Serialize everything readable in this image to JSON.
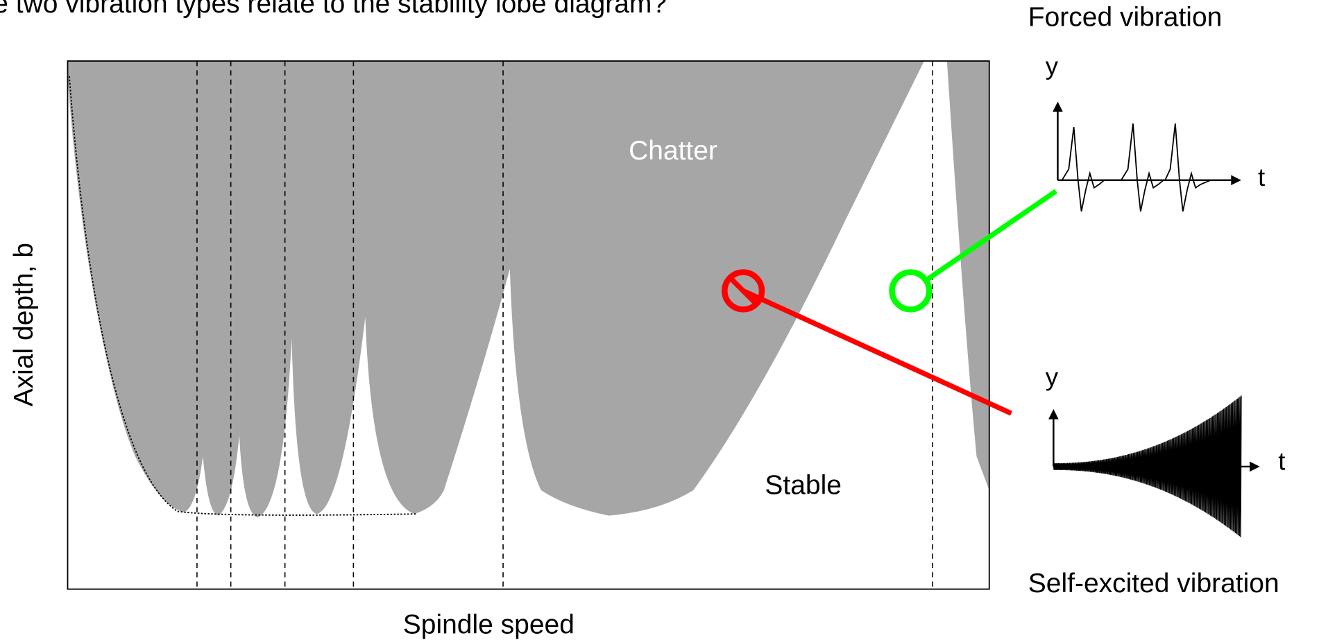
{
  "header": {
    "question": "e two vibration types relate to the stability lobe diagram?"
  },
  "diagram": {
    "x_axis_label": "Spindle speed",
    "y_axis_label": "Axial depth, b",
    "regions": {
      "chatter": "Chatter",
      "stable": "Stable"
    }
  },
  "insets": [
    {
      "title": "Forced vibration",
      "y_label": "y",
      "t_label": "t"
    },
    {
      "title": "Self-excited vibration",
      "y_label": "y",
      "t_label": "t"
    }
  ]
}
